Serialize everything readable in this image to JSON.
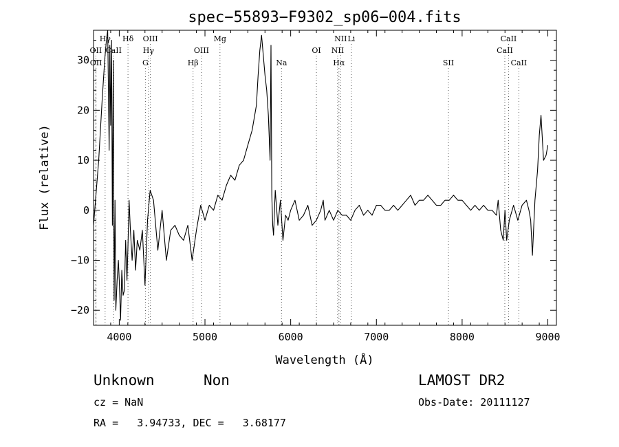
{
  "chart_data": {
    "type": "line",
    "title": "spec−55893−F9302_sp06−004.fits",
    "xlabel": "Wavelength (Å)",
    "ylabel": "Flux (relative)",
    "xlim": [
      3700,
      9100
    ],
    "ylim": [
      -23,
      36
    ],
    "x_ticks": [
      4000,
      5000,
      6000,
      7000,
      8000,
      9000
    ],
    "y_ticks": [
      -20,
      -10,
      0,
      10,
      20,
      30
    ],
    "line_markers": [
      {
        "label": "Hγ",
        "x": 3835,
        "row": 0
      },
      {
        "label": "OII",
        "x": 3727,
        "row": 1
      },
      {
        "label": "CaII",
        "x": 3934,
        "row": 1
      },
      {
        "label": "OII",
        "x": 3729,
        "row": 2
      },
      {
        "label": "Hδ",
        "x": 4102,
        "row": 0
      },
      {
        "label": "OIII",
        "x": 4363,
        "row": 0
      },
      {
        "label": "Hγ",
        "x": 4341,
        "row": 1
      },
      {
        "label": "G",
        "x": 4305,
        "row": 2
      },
      {
        "label": "Mg",
        "x": 5175,
        "row": 0
      },
      {
        "label": "OIII",
        "x": 4959,
        "row": 1
      },
      {
        "label": "Hβ",
        "x": 4861,
        "row": 2
      },
      {
        "label": "Na",
        "x": 5893,
        "row": 2
      },
      {
        "label": "OI",
        "x": 6300,
        "row": 1
      },
      {
        "label": "NII",
        "x": 6583,
        "row": 0
      },
      {
        "label": "Li",
        "x": 6708,
        "row": 0
      },
      {
        "label": "NII",
        "x": 6548,
        "row": 1
      },
      {
        "label": "Hα",
        "x": 6563,
        "row": 2
      },
      {
        "label": "SII",
        "x": 7840,
        "row": 2
      },
      {
        "label": "CaII",
        "x": 8542,
        "row": 0
      },
      {
        "label": "CaII",
        "x": 8498,
        "row": 1
      },
      {
        "label": "CaII",
        "x": 8662,
        "row": 2
      }
    ],
    "series": [
      {
        "x": [
          3700,
          3760,
          3800,
          3830,
          3850,
          3865,
          3875,
          3882,
          3890,
          3900,
          3910,
          3920,
          3930,
          3940,
          3950,
          3960,
          3975,
          3990,
          4000,
          4015,
          4030,
          4045,
          4060,
          4075,
          4090,
          4100,
          4115,
          4130,
          4150,
          4170,
          4190,
          4210,
          4240,
          4270,
          4300,
          4330,
          4360,
          4400,
          4450,
          4500,
          4550,
          4600,
          4650,
          4700,
          4750,
          4800,
          4850,
          4900,
          4950,
          5000,
          5050,
          5100,
          5150,
          5200,
          5250,
          5300,
          5350,
          5400,
          5450,
          5500,
          5550,
          5600,
          5620,
          5640,
          5660,
          5680,
          5700,
          5720,
          5740,
          5760,
          5770,
          5780,
          5790,
          5800,
          5820,
          5850,
          5880,
          5910,
          5940,
          5970,
          6000,
          6050,
          6100,
          6150,
          6200,
          6250,
          6300,
          6350,
          6380,
          6400,
          6450,
          6500,
          6550,
          6600,
          6650,
          6700,
          6750,
          6800,
          6850,
          6900,
          6950,
          7000,
          7050,
          7100,
          7150,
          7200,
          7250,
          7300,
          7350,
          7400,
          7450,
          7500,
          7550,
          7600,
          7650,
          7700,
          7750,
          7800,
          7850,
          7900,
          7950,
          8000,
          8050,
          8100,
          8150,
          8200,
          8250,
          8300,
          8350,
          8400,
          8420,
          8450,
          8480,
          8500,
          8520,
          8550,
          8600,
          8650,
          8700,
          8750,
          8780,
          8800,
          8820,
          8850,
          8880,
          8900,
          8920,
          8950,
          8980,
          9000
        ],
        "y": [
          -3,
          10,
          22,
          30,
          34,
          36,
          22,
          12,
          33,
          17,
          34,
          -3,
          30,
          -18,
          2,
          -20,
          -14,
          -10,
          -14,
          -22,
          -12,
          -17,
          -16,
          -6,
          -14,
          -8,
          2,
          -4,
          -10,
          -4,
          -12,
          -6,
          -8,
          -4,
          -15,
          -2,
          4,
          2,
          -8,
          0,
          -10,
          -4,
          -3,
          -5,
          -6,
          -3,
          -10,
          -4,
          1,
          -2,
          1,
          0,
          3,
          2,
          5,
          7,
          6,
          9,
          10,
          13,
          16,
          21,
          27,
          32,
          35,
          31,
          27,
          24,
          19,
          10,
          33,
          3,
          -3,
          -5,
          4,
          -3,
          2,
          -6,
          -1,
          -2,
          0,
          2,
          -2,
          -1,
          1,
          -3,
          -2,
          0,
          2,
          -2,
          0,
          -2,
          0,
          -1,
          -1,
          -2,
          0,
          1,
          -1,
          0,
          -1,
          1,
          1,
          0,
          0,
          1,
          0,
          1,
          2,
          3,
          1,
          2,
          2,
          3,
          2,
          1,
          1,
          2,
          2,
          3,
          2,
          2,
          1,
          0,
          1,
          0,
          1,
          0,
          0,
          -1,
          2,
          -4,
          -6,
          0,
          -6,
          -2,
          1,
          -2,
          1,
          2,
          0,
          -2,
          -9,
          2,
          8,
          15,
          19,
          10,
          11,
          13
        ]
      }
    ]
  },
  "info": {
    "class": "Unknown",
    "subclass": "Non",
    "survey": "LAMOST DR2",
    "cz": "cz = NaN",
    "obs_date": "Obs-Date: 20111127",
    "coords": "RA =   3.94733, DEC =   3.68177"
  }
}
